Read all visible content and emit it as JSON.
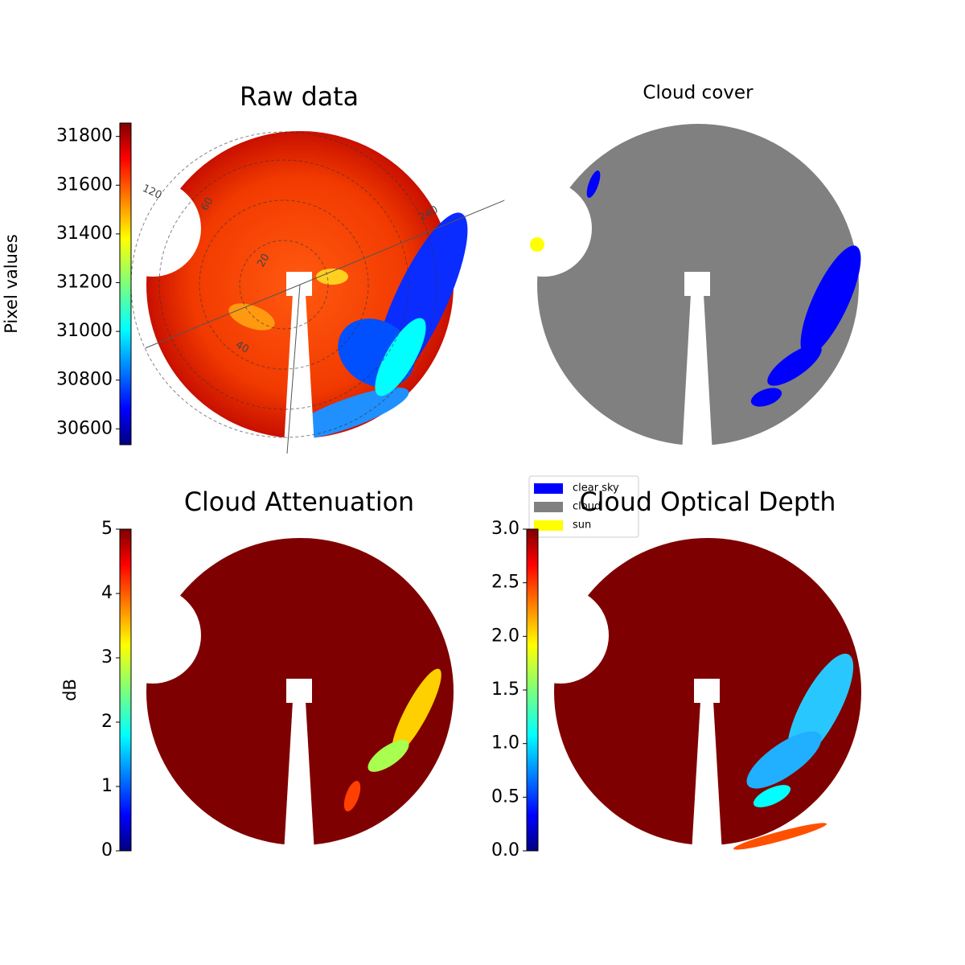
{
  "chart_data": [
    {
      "type": "image",
      "title": "Raw data",
      "colorbar_label": "Pixel values",
      "colormap": "jet",
      "ylim": [
        30535,
        31855
      ],
      "yticks": [
        30600,
        30800,
        31000,
        31200,
        31400,
        31600,
        31800
      ],
      "annotations": [
        "120",
        "60",
        "240",
        "20",
        "40"
      ]
    },
    {
      "type": "image",
      "title": "Cloud cover",
      "legend_items": [
        {
          "name": "clear sky",
          "color": "#0000ff"
        },
        {
          "name": "cloud",
          "color": "#808080"
        },
        {
          "name": "sun",
          "color": "#ffff00"
        }
      ]
    },
    {
      "type": "image",
      "title": "Cloud Attenuation",
      "colorbar_label": "dB",
      "colormap": "jet",
      "ylim": [
        0,
        5
      ],
      "yticks": [
        0,
        1,
        2,
        3,
        4,
        5
      ]
    },
    {
      "type": "image",
      "title": "Cloud Optical Depth",
      "colormap": "jet",
      "ylim": [
        0,
        3
      ],
      "yticks": [
        {
          "value": 0,
          "label": "0.0"
        },
        {
          "value": 0.5,
          "label": "0.5"
        },
        {
          "value": 1,
          "label": "1.0"
        },
        {
          "value": 1.5,
          "label": "1.5"
        },
        {
          "value": 2,
          "label": "2.0"
        },
        {
          "value": 2.5,
          "label": "2.5"
        },
        {
          "value": 3,
          "label": "3.0"
        }
      ]
    }
  ]
}
